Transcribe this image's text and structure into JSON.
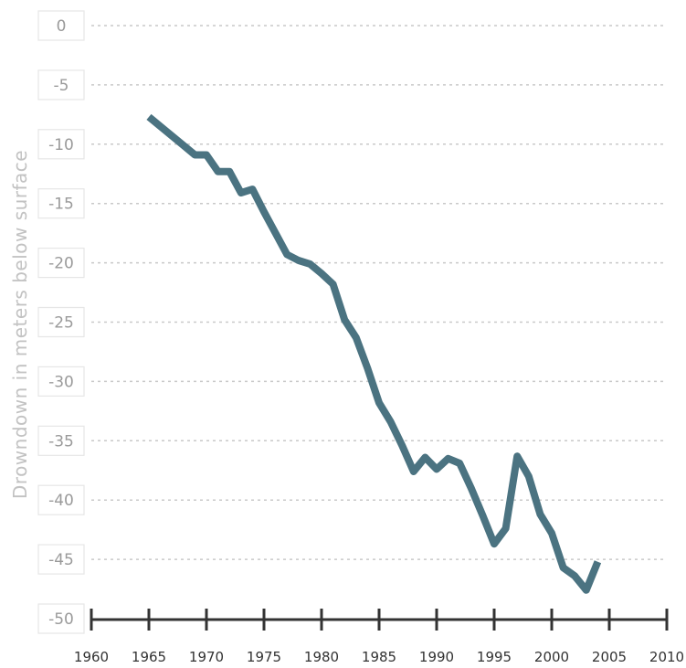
{
  "chart_data": {
    "type": "line",
    "title": "",
    "ylabel": "Drowndown in meters below surface",
    "xlabel": "",
    "xlim": [
      1960,
      2010
    ],
    "ylim": [
      -50,
      0
    ],
    "x_ticks": [
      "1960",
      "1965",
      "1970",
      "1975",
      "1980",
      "1985",
      "1990",
      "1995",
      "2000",
      "2005",
      "2010"
    ],
    "y_ticks": [
      "0",
      "-5",
      "-10",
      "-15",
      "-20",
      "-25",
      "-30",
      "-35",
      "-40",
      "-45",
      "-50"
    ],
    "grid": "horizontal dotted",
    "colors": {
      "line": "#4b7381",
      "grid": "#c9c9c9",
      "axis": "#333333"
    },
    "series": [
      {
        "x": [
          1965,
          1966,
          1967,
          1968,
          1969,
          1970,
          1971,
          1972,
          1973,
          1974,
          1975,
          1976,
          1977,
          1978,
          1979,
          1980,
          1981,
          1982,
          1983,
          1984,
          1985,
          1986,
          1987,
          1988,
          1989,
          1990,
          1991,
          1992,
          1993,
          1994,
          1995,
          1996,
          1997,
          1998,
          1999,
          2000,
          2001,
          2002,
          2003,
          2004
        ],
        "values": [
          -7.7,
          -8.5,
          -9.3,
          -10.1,
          -10.9,
          -10.9,
          -12.3,
          -12.3,
          -14.1,
          -13.8,
          -15.7,
          -17.5,
          -19.3,
          -19.8,
          -20.1,
          -20.9,
          -21.8,
          -24.8,
          -26.3,
          -28.9,
          -31.8,
          -33.4,
          -35.4,
          -37.6,
          -36.4,
          -37.4,
          -36.5,
          -36.9,
          -39.0,
          -41.3,
          -43.7,
          -42.4,
          -36.3,
          -38.0,
          -41.2,
          -42.8,
          -45.7,
          -46.4,
          -47.6,
          -45.2
        ]
      }
    ]
  }
}
